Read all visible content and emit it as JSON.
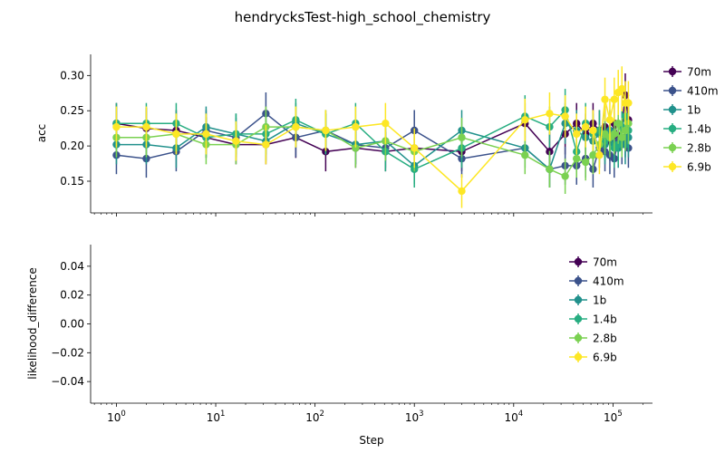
{
  "chart_data": [
    {
      "type": "line",
      "title": "hendrycksTest-high_school_chemistry",
      "xlabel": "",
      "ylabel": "acc",
      "xscale": "log",
      "xlim": [
        0.55,
        250000
      ],
      "ylim": [
        0.105,
        0.33
      ],
      "yticks": [
        "0.15",
        "0.20",
        "0.25",
        "0.30"
      ],
      "legend": "outside-right",
      "grid": false,
      "series": [
        {
          "name": "70m",
          "color": "#440154",
          "x": [
            1,
            2,
            4,
            8,
            16,
            32,
            64,
            128,
            256,
            512,
            1000,
            3000,
            13000,
            23000,
            33000,
            43000,
            53000,
            63000,
            73000,
            83000,
            93000,
            103000,
            113000,
            123000,
            133000,
            143000
          ],
          "y": [
            0.232,
            0.225,
            0.222,
            0.212,
            0.202,
            0.202,
            0.212,
            0.192,
            0.197,
            0.192,
            0.197,
            0.192,
            0.232,
            0.192,
            0.217,
            0.232,
            0.217,
            0.232,
            0.222,
            0.227,
            0.207,
            0.232,
            0.212,
            0.227,
            0.272,
            0.237
          ],
          "err": [
            0.029,
            0.029,
            0.029,
            0.029,
            0.028,
            0.028,
            0.029,
            0.028,
            0.028,
            0.028,
            0.028,
            0.028,
            0.029,
            0.028,
            0.029,
            0.029,
            0.029,
            0.029,
            0.029,
            0.029,
            0.028,
            0.029,
            0.028,
            0.029,
            0.031,
            0.03
          ]
        },
        {
          "name": "410m",
          "color": "#3b528b",
          "x": [
            1,
            2,
            4,
            8,
            16,
            32,
            64,
            128,
            256,
            512,
            1000,
            3000,
            13000,
            23000,
            33000,
            43000,
            53000,
            63000,
            73000,
            83000,
            93000,
            103000,
            113000,
            123000,
            133000,
            143000
          ],
          "y": [
            0.187,
            0.182,
            0.192,
            0.222,
            0.212,
            0.246,
            0.212,
            0.222,
            0.202,
            0.197,
            0.222,
            0.182,
            0.197,
            0.167,
            0.172,
            0.172,
            0.182,
            0.167,
            0.197,
            0.192,
            0.187,
            0.182,
            0.207,
            0.202,
            0.212,
            0.197
          ],
          "err": [
            0.027,
            0.027,
            0.028,
            0.029,
            0.028,
            0.03,
            0.028,
            0.029,
            0.028,
            0.028,
            0.029,
            0.027,
            0.028,
            0.026,
            0.027,
            0.027,
            0.027,
            0.026,
            0.028,
            0.028,
            0.027,
            0.027,
            0.028,
            0.028,
            0.028,
            0.028
          ]
        },
        {
          "name": "1b",
          "color": "#21918c",
          "x": [
            1,
            2,
            4,
            8,
            16,
            32,
            64,
            128,
            256,
            512,
            1000,
            3000,
            13000,
            23000,
            33000,
            43000,
            53000,
            63000,
            73000,
            83000,
            93000,
            103000,
            113000,
            123000,
            133000,
            143000
          ],
          "y": [
            0.202,
            0.202,
            0.197,
            0.227,
            0.217,
            0.207,
            0.232,
            0.217,
            0.202,
            0.207,
            0.172,
            0.222,
            0.197,
            0.167,
            0.232,
            0.222,
            0.212,
            0.207,
            0.217,
            0.202,
            0.222,
            0.202,
            0.197,
            0.212,
            0.202,
            0.212
          ],
          "err": [
            0.028,
            0.028,
            0.028,
            0.029,
            0.029,
            0.028,
            0.029,
            0.029,
            0.028,
            0.028,
            0.026,
            0.029,
            0.028,
            0.026,
            0.029,
            0.029,
            0.028,
            0.028,
            0.029,
            0.028,
            0.029,
            0.028,
            0.028,
            0.028,
            0.028,
            0.028
          ]
        },
        {
          "name": "1.4b",
          "color": "#27ad81",
          "x": [
            1,
            2,
            4,
            8,
            16,
            32,
            64,
            128,
            256,
            512,
            1000,
            3000,
            13000,
            23000,
            33000,
            43000,
            53000,
            63000,
            73000,
            83000,
            93000,
            103000,
            113000,
            123000,
            133000,
            143000
          ],
          "y": [
            0.232,
            0.232,
            0.232,
            0.212,
            0.217,
            0.217,
            0.237,
            0.217,
            0.232,
            0.192,
            0.167,
            0.197,
            0.242,
            0.227,
            0.251,
            0.192,
            0.232,
            0.217,
            0.222,
            0.207,
            0.212,
            0.197,
            0.202,
            0.227,
            0.242,
            0.222
          ],
          "err": [
            0.029,
            0.029,
            0.029,
            0.028,
            0.029,
            0.029,
            0.03,
            0.029,
            0.029,
            0.028,
            0.026,
            0.028,
            0.03,
            0.029,
            0.03,
            0.028,
            0.029,
            0.029,
            0.029,
            0.028,
            0.028,
            0.028,
            0.028,
            0.029,
            0.03,
            0.029
          ]
        },
        {
          "name": "2.8b",
          "color": "#7ad151",
          "x": [
            1,
            2,
            4,
            8,
            16,
            32,
            64,
            128,
            256,
            512,
            1000,
            3000,
            13000,
            23000,
            33000,
            43000,
            53000,
            63000,
            73000,
            83000,
            93000,
            103000,
            113000,
            123000,
            133000,
            143000
          ],
          "y": [
            0.212,
            0.212,
            0.217,
            0.202,
            0.202,
            0.227,
            0.227,
            0.222,
            0.197,
            0.207,
            0.192,
            0.212,
            0.187,
            0.167,
            0.157,
            0.182,
            0.177,
            0.187,
            0.202,
            0.217,
            0.212,
            0.217,
            0.232,
            0.212,
            0.222,
            0.232
          ],
          "err": [
            0.028,
            0.028,
            0.029,
            0.028,
            0.028,
            0.029,
            0.029,
            0.029,
            0.028,
            0.028,
            0.028,
            0.028,
            0.027,
            0.026,
            0.025,
            0.027,
            0.026,
            0.027,
            0.028,
            0.029,
            0.028,
            0.029,
            0.029,
            0.028,
            0.029,
            0.029
          ]
        },
        {
          "name": "6.9b",
          "color": "#fde725",
          "x": [
            1,
            2,
            4,
            8,
            16,
            32,
            64,
            128,
            256,
            512,
            1000,
            3000,
            13000,
            23000,
            33000,
            43000,
            53000,
            63000,
            73000,
            83000,
            93000,
            103000,
            113000,
            123000,
            133000,
            143000
          ],
          "y": [
            0.227,
            0.227,
            0.217,
            0.217,
            0.207,
            0.202,
            0.227,
            0.222,
            0.227,
            0.232,
            0.197,
            0.136,
            0.237,
            0.246,
            0.242,
            0.217,
            0.227,
            0.222,
            0.187,
            0.266,
            0.237,
            0.266,
            0.276,
            0.281,
            0.261,
            0.261
          ],
          "err": [
            0.029,
            0.029,
            0.029,
            0.029,
            0.028,
            0.028,
            0.029,
            0.029,
            0.029,
            0.029,
            0.028,
            0.024,
            0.03,
            0.03,
            0.03,
            0.029,
            0.029,
            0.029,
            0.027,
            0.031,
            0.03,
            0.031,
            0.032,
            0.032,
            0.031,
            0.031
          ]
        }
      ]
    },
    {
      "type": "line",
      "title": "",
      "xlabel": "Step",
      "ylabel": "likelihood_difference",
      "xscale": "log",
      "xlim": [
        0.55,
        250000
      ],
      "ylim": [
        -0.055,
        0.055
      ],
      "xticks": [
        {
          "value": 1,
          "base": "10",
          "exp": "0"
        },
        {
          "value": 10,
          "base": "10",
          "exp": "1"
        },
        {
          "value": 100,
          "base": "10",
          "exp": "2"
        },
        {
          "value": 1000,
          "base": "10",
          "exp": "3"
        },
        {
          "value": 10000,
          "base": "10",
          "exp": "4"
        },
        {
          "value": 100000,
          "base": "10",
          "exp": "5"
        }
      ],
      "yticks": [
        "−0.04",
        "−0.02",
        "0.00",
        "0.02",
        "0.04"
      ],
      "legend": "upper-right",
      "grid": false,
      "series": [
        {
          "name": "70m",
          "color": "#440154",
          "x": [],
          "y": []
        },
        {
          "name": "410m",
          "color": "#3b528b",
          "x": [],
          "y": []
        },
        {
          "name": "1b",
          "color": "#21918c",
          "x": [],
          "y": []
        },
        {
          "name": "1.4b",
          "color": "#27ad81",
          "x": [],
          "y": []
        },
        {
          "name": "2.8b",
          "color": "#7ad151",
          "x": [],
          "y": []
        },
        {
          "name": "6.9b",
          "color": "#fde725",
          "x": [],
          "y": []
        }
      ]
    }
  ]
}
